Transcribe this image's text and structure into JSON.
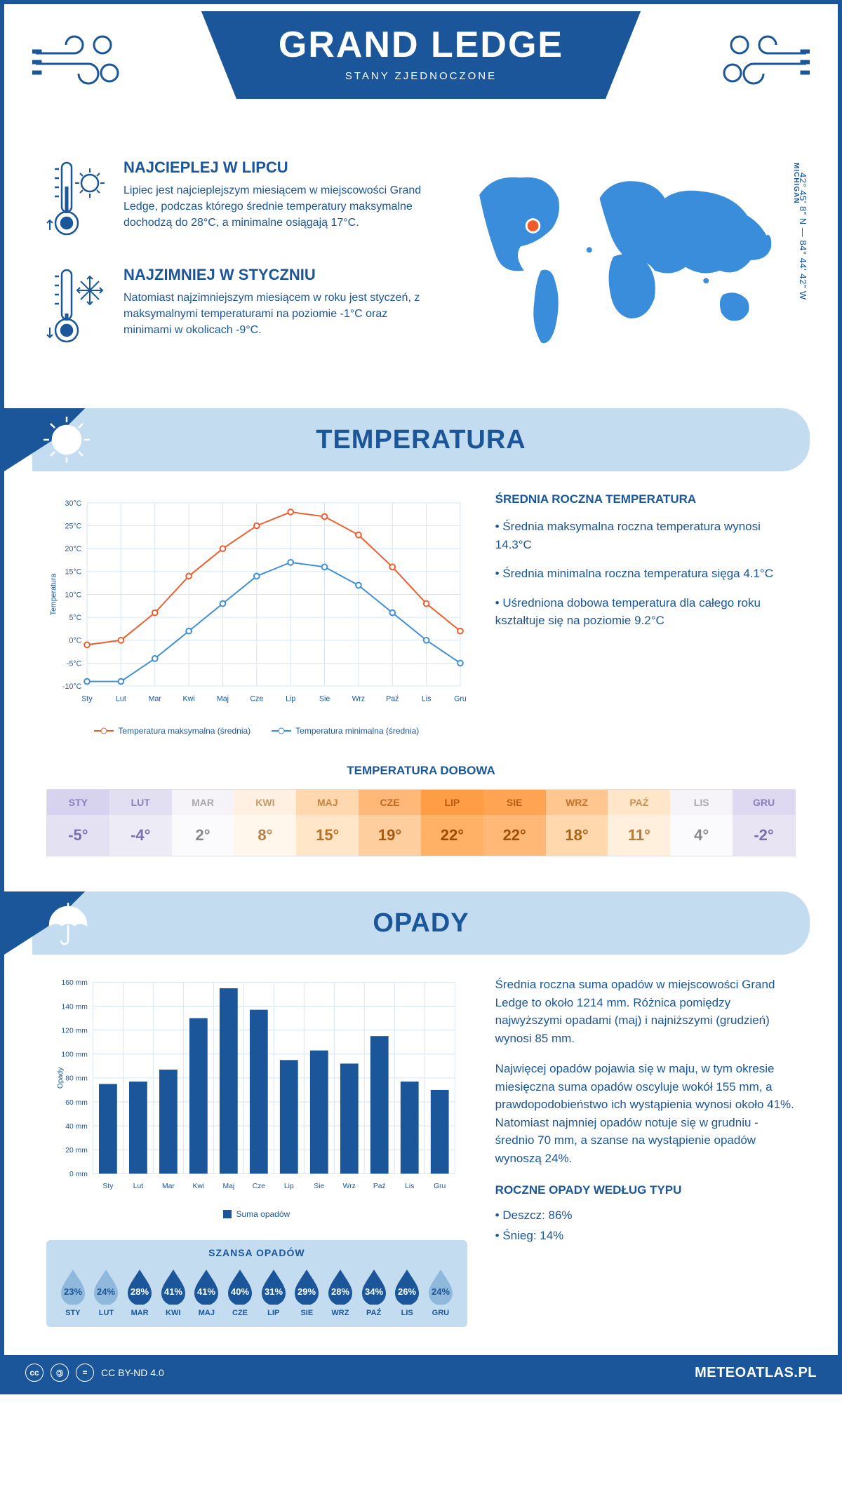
{
  "header": {
    "title": "GRAND LEDGE",
    "subtitle": "STANY ZJEDNOCZONE"
  },
  "coords": "42° 45' 8\" N — 84° 44' 42\" W",
  "region": "MICHIGAN",
  "intro": {
    "hot": {
      "title": "NAJCIEPLEJ W LIPCU",
      "text": "Lipiec jest najcieplejszym miesiącem w miejscowości Grand Ledge, podczas którego średnie temperatury maksymalne dochodzą do 28°C, a minimalne osiągają 17°C."
    },
    "cold": {
      "title": "NAJZIMNIEJ W STYCZNIU",
      "text": "Natomiast najzimniejszym miesiącem w roku jest styczeń, z maksymalnymi temperaturami na poziomie -1°C oraz minimami w okolicach -9°C."
    }
  },
  "temperature": {
    "section_title": "TEMPERATURA",
    "chart": {
      "type": "line",
      "ylabel": "Temperatura",
      "ylim": [
        -10,
        30
      ],
      "ytick_step": 5,
      "ytick_labels": [
        "-10°C",
        "-5°C",
        "0°C",
        "5°C",
        "10°C",
        "15°C",
        "20°C",
        "25°C",
        "30°C"
      ],
      "months": [
        "Sty",
        "Lut",
        "Mar",
        "Kwi",
        "Maj",
        "Cze",
        "Lip",
        "Sie",
        "Wrz",
        "Paź",
        "Lis",
        "Gru"
      ],
      "series": [
        {
          "name": "Temperatura maksymalna (średnia)",
          "color": "#f15a29",
          "values": [
            -1,
            0,
            6,
            14,
            20,
            25,
            28,
            27,
            23,
            16,
            8,
            2
          ]
        },
        {
          "name": "Temperatura minimalna (średnia)",
          "color": "#3a8ddb",
          "values": [
            -9,
            -9,
            -4,
            2,
            8,
            14,
            17,
            16,
            12,
            6,
            0,
            -5
          ]
        }
      ],
      "grid_color": "#d6e4f0",
      "axis_color": "#1a5699",
      "label_fontsize": 11
    },
    "info": {
      "title": "ŚREDNIA ROCZNA TEMPERATURA",
      "bullets": [
        "• Średnia maksymalna roczna temperatura wynosi 14.3°C",
        "• Średnia minimalna roczna temperatura sięga 4.1°C",
        "• Uśredniona dobowa temperatura dla całego roku kształtuje się na poziomie 9.2°C"
      ]
    },
    "daily": {
      "title": "TEMPERATURA DOBOWA",
      "months": [
        "STY",
        "LUT",
        "MAR",
        "KWI",
        "MAJ",
        "CZE",
        "LIP",
        "SIE",
        "WRZ",
        "PAŹ",
        "LIS",
        "GRU"
      ],
      "values": [
        "-5°",
        "-4°",
        "2°",
        "8°",
        "15°",
        "19°",
        "22°",
        "22°",
        "18°",
        "11°",
        "4°",
        "-2°"
      ],
      "head_colors": [
        "#d7d3ef",
        "#e2dff2",
        "#f6f4f9",
        "#fff0e1",
        "#ffd8b0",
        "#ffb877",
        "#ff9d47",
        "#ffa452",
        "#ffc78f",
        "#ffe6cb",
        "#f6f4f9",
        "#ded9f0"
      ],
      "val_colors": [
        "#e4e1f3",
        "#ecebf6",
        "#fbfafc",
        "#fff6ec",
        "#ffe6c8",
        "#ffce9e",
        "#ffb266",
        "#ffb875",
        "#ffd9ad",
        "#ffefdc",
        "#fbfafc",
        "#e8e4f3"
      ],
      "head_text": [
        "#8a7fb8",
        "#8a7fb8",
        "#aaaaaa",
        "#c79868",
        "#c78440",
        "#c06a20",
        "#b85a10",
        "#b85e14",
        "#c07528",
        "#c79050",
        "#aaaaaa",
        "#8a7fb8"
      ],
      "val_text": [
        "#7a6fb0",
        "#7a6fb0",
        "#888888",
        "#b88048",
        "#b87020",
        "#a85a10",
        "#a04a00",
        "#a05005",
        "#a86518",
        "#b87a38",
        "#888888",
        "#7a6fb0"
      ]
    }
  },
  "precip": {
    "section_title": "OPADY",
    "chart": {
      "type": "bar",
      "ylabel": "Opady",
      "ylim": [
        0,
        160
      ],
      "ytick_step": 20,
      "ytick_labels": [
        "0 mm",
        "20 mm",
        "40 mm",
        "60 mm",
        "80 mm",
        "100 mm",
        "120 mm",
        "140 mm",
        "160 mm"
      ],
      "months": [
        "Sty",
        "Lut",
        "Mar",
        "Kwi",
        "Maj",
        "Cze",
        "Lip",
        "Sie",
        "Wrz",
        "Paź",
        "Lis",
        "Gru"
      ],
      "values": [
        75,
        77,
        87,
        130,
        155,
        137,
        95,
        103,
        92,
        115,
        77,
        70
      ],
      "bar_color": "#1a5699",
      "grid_color": "#d6e4f0",
      "axis_color": "#1a5699",
      "legend": "Suma opadów",
      "label_fontsize": 11
    },
    "info": {
      "p1": "Średnia roczna suma opadów w miejscowości Grand Ledge to około 1214 mm. Różnica pomiędzy najwyższymi opadami (maj) i najniższymi (grudzień) wynosi 85 mm.",
      "p2": "Najwięcej opadów pojawia się w maju, w tym okresie miesięczna suma opadów oscyluje wokół 155 mm, a prawdopodobieństwo ich wystąpienia wynosi około 41%. Natomiast najmniej opadów notuje się w grudniu - średnio 70 mm, a szanse na wystąpienie opadów wynoszą 24%.",
      "type_title": "ROCZNE OPADY WEDŁUG TYPU",
      "types": [
        "• Deszcz: 86%",
        "• Śnieg: 14%"
      ]
    },
    "chance": {
      "title": "SZANSA OPADÓW",
      "months": [
        "STY",
        "LUT",
        "MAR",
        "KWI",
        "MAJ",
        "CZE",
        "LIP",
        "SIE",
        "WRZ",
        "PAŹ",
        "LIS",
        "GRU"
      ],
      "values": [
        "23%",
        "24%",
        "28%",
        "41%",
        "41%",
        "40%",
        "31%",
        "29%",
        "28%",
        "34%",
        "26%",
        "24%"
      ],
      "colors": [
        "#8fb8dd",
        "#8fb8dd",
        "#1a5699",
        "#1a5699",
        "#1a5699",
        "#1a5699",
        "#1a5699",
        "#1a5699",
        "#1a5699",
        "#1a5699",
        "#1a5699",
        "#8fb8dd"
      ],
      "text_colors": [
        "#1a5699",
        "#1a5699",
        "#ffffff",
        "#ffffff",
        "#ffffff",
        "#ffffff",
        "#ffffff",
        "#ffffff",
        "#ffffff",
        "#ffffff",
        "#ffffff",
        "#1a5699"
      ]
    }
  },
  "footer": {
    "license": "CC BY-ND 4.0",
    "site": "METEOATLAS.PL"
  }
}
